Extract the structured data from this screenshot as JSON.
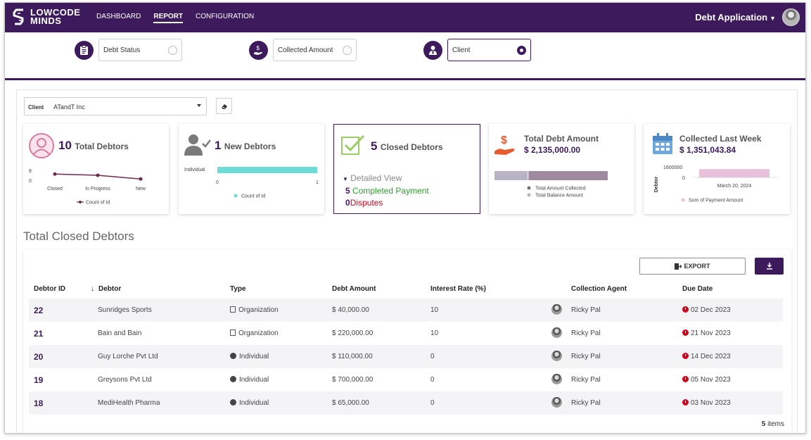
{
  "app": {
    "logo_line1": "LOWCODE",
    "logo_line2": "MINDS",
    "title": "Debt Application",
    "nav": [
      "DASHBOARD",
      "REPORT",
      "CONFIGURATION"
    ],
    "active_nav": "REPORT"
  },
  "report_types": [
    {
      "label": "Debt Status",
      "icon": "clipboard-icon",
      "selected": false
    },
    {
      "label": "Collected Amount",
      "icon": "money-hand-icon",
      "selected": false
    },
    {
      "label": "Client",
      "icon": "client-person-icon",
      "selected": true
    }
  ],
  "filter": {
    "label": "Client",
    "value": "ATandT Inc"
  },
  "cards": {
    "total_debtors": {
      "count": "10",
      "label": "Total Debtors",
      "chart_data": {
        "type": "line",
        "categories": [
          "Closed",
          "In Progress",
          "New"
        ],
        "series": [
          {
            "name": "Count of Id",
            "values": [
              5,
              4,
              1
            ]
          }
        ],
        "y_ticks": [
          "8",
          "0"
        ]
      }
    },
    "new_debtors": {
      "count": "1",
      "label": "New Debtors",
      "chart_data": {
        "type": "bar",
        "categories": [
          "Individual"
        ],
        "series": [
          {
            "name": "Count of Id",
            "values": [
              1
            ]
          }
        ],
        "x_ticks": [
          "0",
          "1"
        ]
      }
    },
    "closed_debtors": {
      "count": "5",
      "label": "Closed Debtors",
      "detail_label": "Detailed View",
      "completed_count": "5",
      "completed_label": "Completed Payment",
      "disputes_count": "0",
      "disputes_label": "Disputes"
    },
    "total_debt": {
      "label": "Total Debt Amount",
      "amount": "$ 2,135,000.00",
      "chart_data": {
        "type": "bar",
        "series": [
          {
            "name": "Total Amount Collected",
            "values": [
              0.3
            ]
          },
          {
            "name": "Total Balance Amount",
            "values": [
              0.7
            ]
          }
        ]
      }
    },
    "collected_last_week": {
      "label": "Collected Last Week",
      "amount": "$ 1,351,043.84",
      "chart_data": {
        "type": "bar",
        "categories": [
          "March 20, 2024"
        ],
        "series": [
          {
            "name": "Sum of Payment Amount",
            "values": [
              1351043.84
            ]
          }
        ],
        "ylabel": "Debtor",
        "y_ticks": [
          "1600000",
          "0"
        ]
      }
    }
  },
  "colors": {
    "brand": "#3c1a5b",
    "teal": "#6ddbd6",
    "pink": "#c45a86",
    "green": "#2ca02c",
    "red": "#d0021b"
  },
  "section_title": "Total Closed Debtors",
  "buttons": {
    "export": "EXPORT"
  },
  "table": {
    "columns": [
      "Debtor ID",
      "Debtor",
      "Type",
      "Debt Amount",
      "Interest Rate (%)",
      "Collection Agent",
      "Due Date"
    ],
    "rows": [
      {
        "id": "22",
        "debtor": "Sunridges Sports",
        "type": "Organization",
        "amount": "$ 40,000.00",
        "rate": "10",
        "agent": "Ricky Pal",
        "due": "02 Dec 2023"
      },
      {
        "id": "21",
        "debtor": "Bain and Bain",
        "type": "Organization",
        "amount": "$ 220,000.00",
        "rate": "10",
        "agent": "Ricky Pal",
        "due": "21 Nov 2023"
      },
      {
        "id": "20",
        "debtor": "Guy Lorche Pvt Ltd",
        "type": "Individual",
        "amount": "$ 110,000.00",
        "rate": "0",
        "agent": "Ricky Pal",
        "due": "14 Dec 2023"
      },
      {
        "id": "19",
        "debtor": "Greysons Pvt Ltd",
        "type": "Individual",
        "amount": "$ 700,000.00",
        "rate": "0",
        "agent": "Ricky Pal",
        "due": "05 Nov 2023"
      },
      {
        "id": "18",
        "debtor": "MediHealth Pharma",
        "type": "Individual",
        "amount": "$ 65,000.00",
        "rate": "0",
        "agent": "Ricky Pal",
        "due": "03 Nov 2023"
      }
    ],
    "items_count": "5",
    "items_label": "items"
  }
}
